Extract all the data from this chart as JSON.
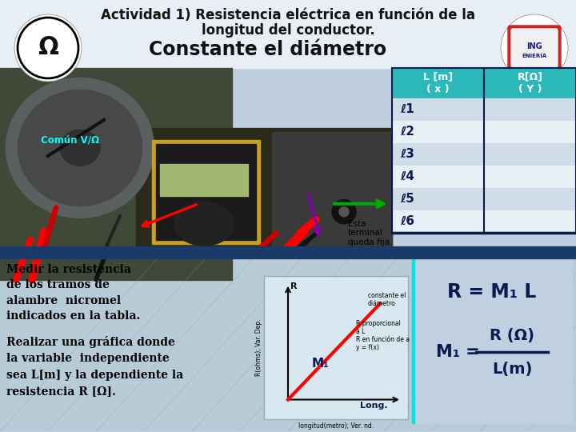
{
  "title_line1": "Actividad 1) Resistencia eléctrica en función de la",
  "title_line2": "longitud del conductor.",
  "subtitle": "Constante el diámetro",
  "table_header_col1": "L [m]\n( x )",
  "table_header_col2": "R[Ω]\n( Y )",
  "table_rows": [
    "ℓ1",
    "ℓ2",
    "ℓ3",
    "ℓ4",
    "ℓ5",
    "ℓ6"
  ],
  "left_label": "Común V/Ω",
  "instruction_text": "Medir la resistencia\nde los tramos de\nalambre  nicromel\nindicados en la tabla.",
  "graph_label_text": "Realizar una gráfica donde\nla variable  independiente\nsea L[m] y la dependiente la\nresistencia R [Ω].",
  "esta_text": "Esta\nterminal\nqueda fija.",
  "bg_color": "#c0cfe0",
  "header_color": "#2ab8b8",
  "title_color": "#111111",
  "dark_blue": "#0a1a50",
  "row_colors": [
    "#d0dce8",
    "#e8f0f5",
    "#d0dce8",
    "#e8f0f5",
    "#d0dce8",
    "#e8f0f5"
  ],
  "photo_bg": "#3a3a3a",
  "photo_bg2": "#2a2a1a",
  "stripe_color": "#1a3a6a",
  "teal": "#2ab8b8",
  "white": "#ffffff",
  "cyan_line": "#00e5e5",
  "graph_bg": "#d8e8f0"
}
